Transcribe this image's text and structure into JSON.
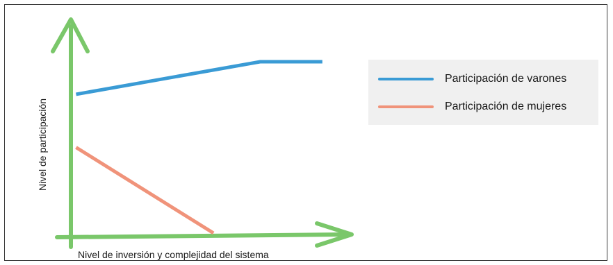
{
  "chart_data": {
    "type": "line",
    "xlabel": "Nivel de inversión y complejidad del sistema",
    "ylabel": "Nivel de participación",
    "legend_position": "top-right",
    "grid": false,
    "series": [
      {
        "name": "Participación de varones",
        "color": "#3a9bd5",
        "points": [
          [
            0.02,
            0.81
          ],
          [
            0.73,
            1.0
          ],
          [
            0.97,
            1.0
          ]
        ]
      },
      {
        "name": "Participación de mujeres",
        "color": "#f0937a",
        "points": [
          [
            0.02,
            0.5
          ],
          [
            0.55,
            0.0
          ]
        ]
      }
    ],
    "axis_color": "#7ac76a"
  }
}
